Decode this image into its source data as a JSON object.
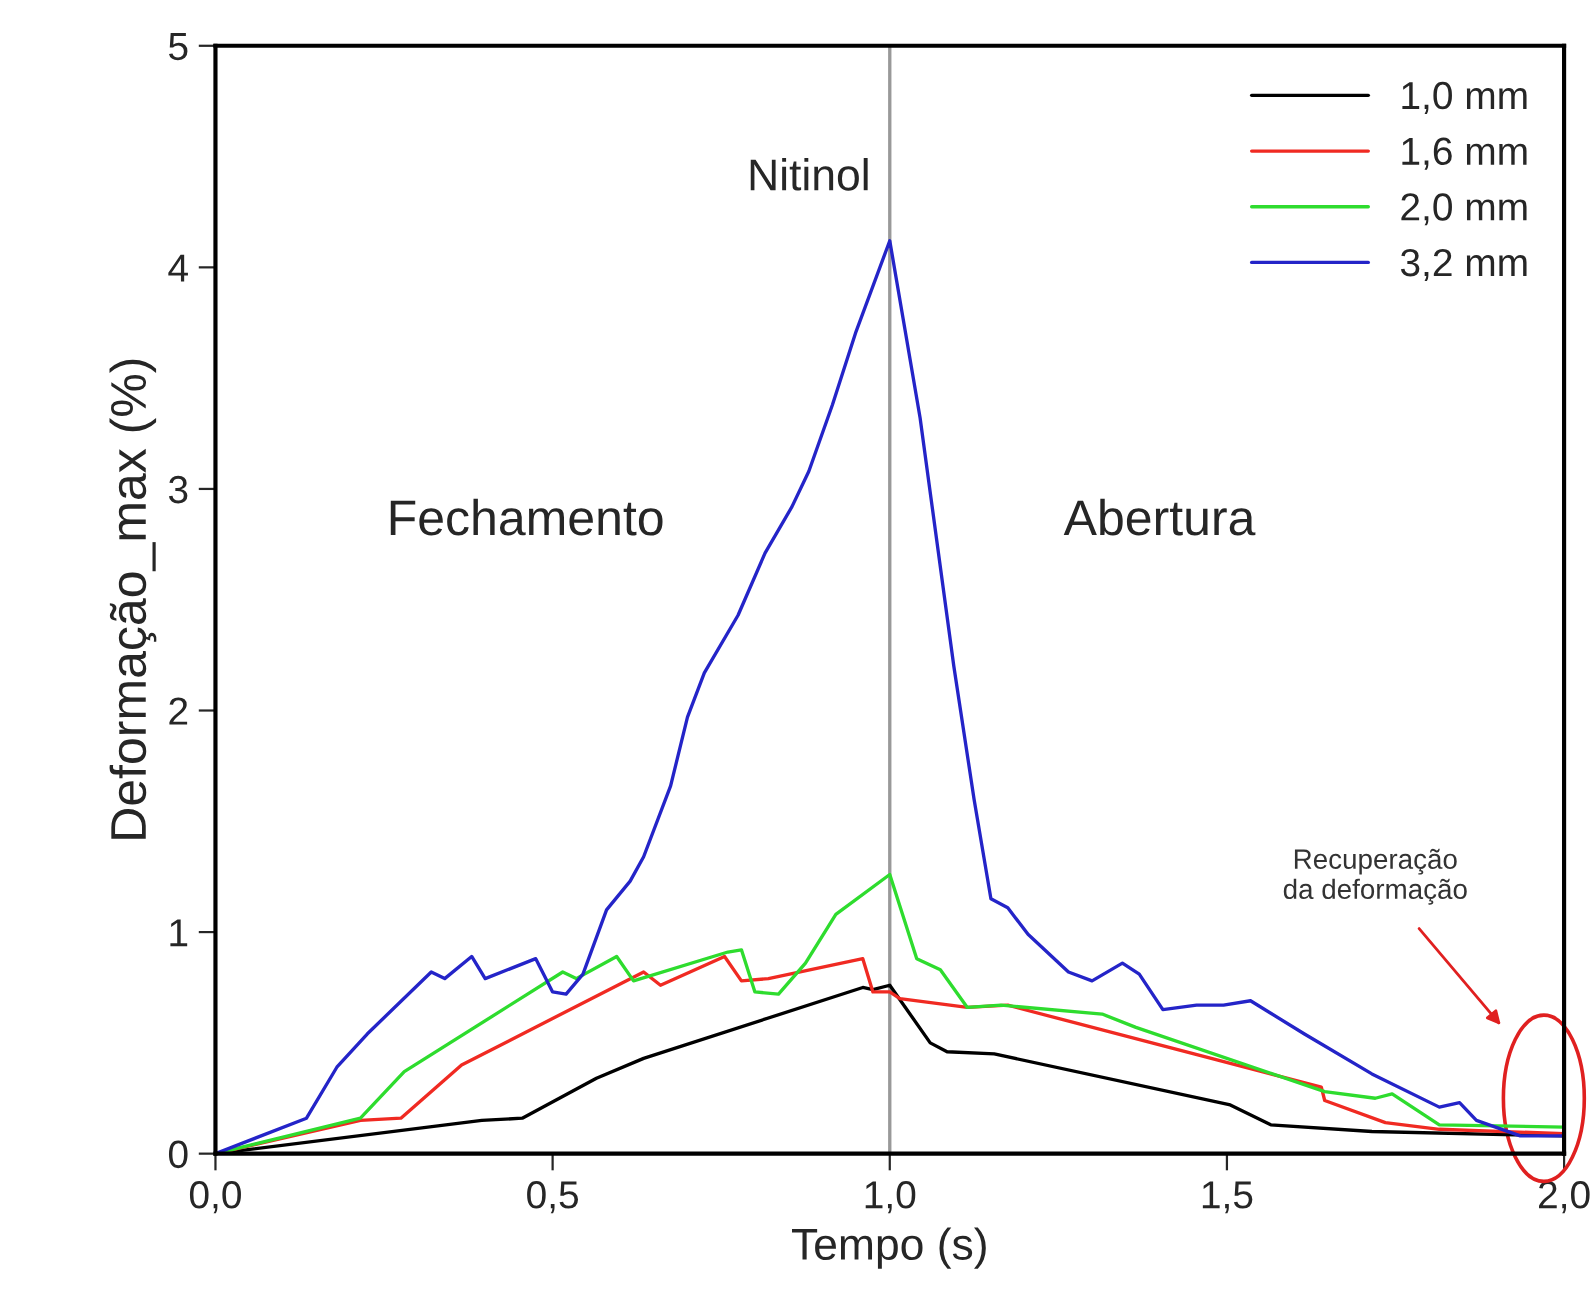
{
  "chart_data": {
    "type": "line",
    "xlabel": "Tempo (s)",
    "ylabel": "Deformação_max (%)",
    "xlim": [
      0,
      2.0
    ],
    "ylim": [
      0,
      5
    ],
    "xticks": [
      {
        "value": 0,
        "label": "0,0"
      },
      {
        "value": 0.5,
        "label": "0,5"
      },
      {
        "value": 1.0,
        "label": "1,0"
      },
      {
        "value": 1.5,
        "label": "1,5"
      },
      {
        "value": 2.0,
        "label": "2,0"
      }
    ],
    "yticks": [
      0,
      1,
      2,
      3,
      4,
      5
    ],
    "grid": false,
    "legend": "top right",
    "line_style": "solid",
    "ref_lines": [
      {
        "axis": "x",
        "value": 1.0,
        "label": null,
        "color": "#999999"
      }
    ],
    "annotations": [
      "Nitinol",
      "Fechamento",
      "Abertura",
      "Recuperação\nda deformação"
    ],
    "series": [
      {
        "name": "1,0 mm",
        "color": "#000000",
        "x": [
          0,
          0.395,
          0.455,
          0.565,
          0.635,
          0.96,
          0.975,
          1.0,
          1.06,
          1.085,
          1.155,
          1.505,
          1.565,
          1.715,
          2.0
        ],
        "values": [
          0,
          0.15,
          0.16,
          0.34,
          0.43,
          0.75,
          0.74,
          0.76,
          0.5,
          0.46,
          0.45,
          0.22,
          0.13,
          0.1,
          0.08
        ]
      },
      {
        "name": "1,6 mm",
        "color": "#f02a22",
        "x": [
          0,
          0.215,
          0.275,
          0.365,
          0.635,
          0.66,
          0.755,
          0.78,
          0.82,
          0.96,
          0.975,
          1.0,
          1.015,
          1.115,
          1.175,
          1.64,
          1.645,
          1.735,
          1.815,
          2.0
        ],
        "values": [
          0,
          0.15,
          0.16,
          0.4,
          0.82,
          0.76,
          0.89,
          0.78,
          0.79,
          0.88,
          0.73,
          0.73,
          0.7,
          0.66,
          0.67,
          0.3,
          0.24,
          0.14,
          0.11,
          0.09
        ]
      },
      {
        "name": "2,0 mm",
        "color": "#2edc2e",
        "x": [
          0,
          0.215,
          0.28,
          0.515,
          0.535,
          0.595,
          0.62,
          0.76,
          0.78,
          0.8,
          0.835,
          0.875,
          0.92,
          1.0,
          1.04,
          1.075,
          1.115,
          1.165,
          1.315,
          1.365,
          1.645,
          1.72,
          1.745,
          1.815,
          2.0
        ],
        "values": [
          0,
          0.16,
          0.37,
          0.82,
          0.79,
          0.89,
          0.78,
          0.91,
          0.92,
          0.73,
          0.72,
          0.86,
          1.08,
          1.26,
          0.88,
          0.83,
          0.66,
          0.67,
          0.63,
          0.57,
          0.28,
          0.25,
          0.27,
          0.13,
          0.12
        ]
      },
      {
        "name": "3,2 mm",
        "color": "#2424c8",
        "x": [
          0,
          0.135,
          0.18,
          0.225,
          0.32,
          0.34,
          0.38,
          0.4,
          0.475,
          0.5,
          0.52,
          0.545,
          0.58,
          0.615,
          0.635,
          0.675,
          0.7,
          0.725,
          0.775,
          0.815,
          0.855,
          0.88,
          0.915,
          0.95,
          1.0,
          1.045,
          1.095,
          1.125,
          1.15,
          1.175,
          1.205,
          1.265,
          1.3,
          1.345,
          1.37,
          1.405,
          1.455,
          1.495,
          1.535,
          1.615,
          1.715,
          1.815,
          1.845,
          1.87,
          1.935,
          2.0
        ],
        "values": [
          0,
          0.16,
          0.39,
          0.54,
          0.82,
          0.79,
          0.89,
          0.79,
          0.88,
          0.73,
          0.72,
          0.81,
          1.1,
          1.23,
          1.34,
          1.66,
          1.97,
          2.17,
          2.43,
          2.71,
          2.92,
          3.08,
          3.38,
          3.71,
          4.12,
          3.32,
          2.2,
          1.6,
          1.15,
          1.11,
          0.99,
          0.82,
          0.78,
          0.86,
          0.81,
          0.65,
          0.67,
          0.67,
          0.69,
          0.54,
          0.36,
          0.21,
          0.23,
          0.15,
          0.08,
          0.08
        ]
      }
    ]
  }
}
